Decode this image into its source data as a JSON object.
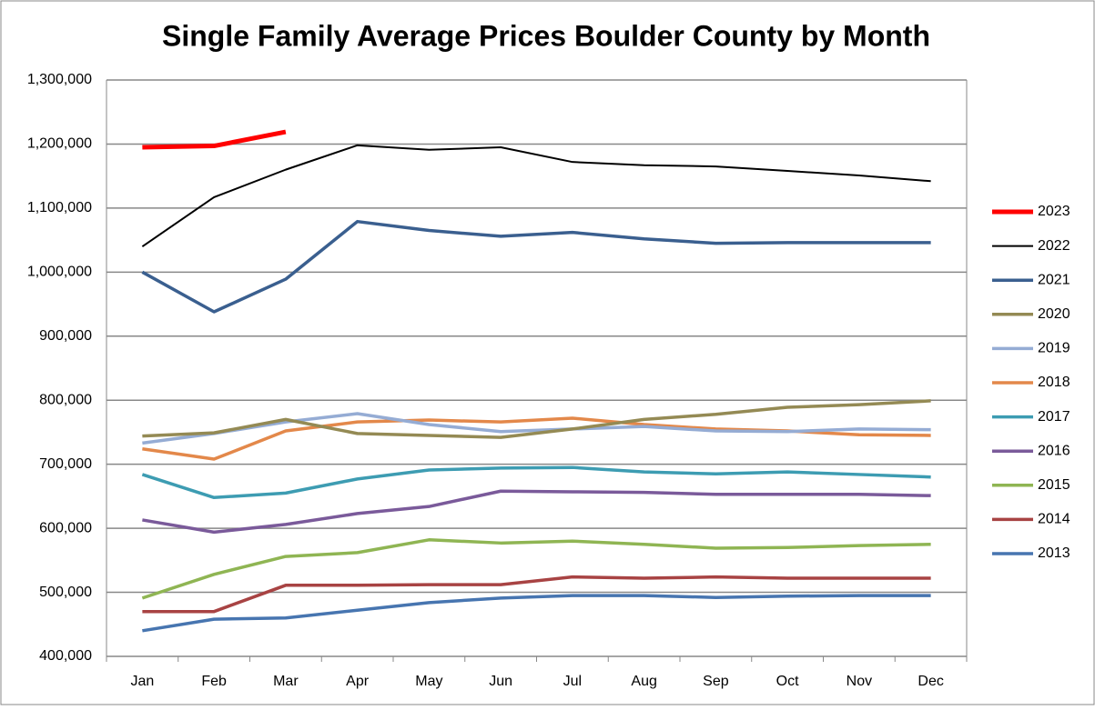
{
  "chart_data": {
    "type": "line",
    "title": "Single Family Average Prices Boulder County by Month",
    "categories": [
      "Jan",
      "Feb",
      "Mar",
      "Apr",
      "May",
      "Jun",
      "Jul",
      "Aug",
      "Sep",
      "Oct",
      "Nov",
      "Dec"
    ],
    "ylim": [
      400000,
      1300000
    ],
    "yticks": [
      {
        "value": 400000,
        "label": "400,000"
      },
      {
        "value": 500000,
        "label": "500,000"
      },
      {
        "value": 600000,
        "label": "600,000"
      },
      {
        "value": 700000,
        "label": "700,000"
      },
      {
        "value": 800000,
        "label": "800,000"
      },
      {
        "value": 900000,
        "label": "900,000"
      },
      {
        "value": 1000000,
        "label": "1,000,000"
      },
      {
        "value": 1100000,
        "label": "1,100,000"
      },
      {
        "value": 1200000,
        "label": "1,200,000"
      },
      {
        "value": 1300000,
        "label": "1,300,000"
      }
    ],
    "grid": true,
    "legend": "right",
    "series": [
      {
        "name": "2023",
        "color": "#ff0000",
        "values": [
          1195000,
          1197000,
          1219000,
          null,
          null,
          null,
          null,
          null,
          null,
          null,
          null,
          null
        ]
      },
      {
        "name": "2022",
        "color": "#000000",
        "values": [
          1040000,
          1117000,
          1160000,
          1198000,
          1191000,
          1195000,
          1172000,
          1167000,
          1165000,
          1158000,
          1151000,
          1142000
        ]
      },
      {
        "name": "2021",
        "color": "#3a5f8f",
        "values": [
          1000000,
          938000,
          989000,
          1079000,
          1065000,
          1056000,
          1062000,
          1052000,
          1045000,
          1046000,
          1046000,
          1046000
        ]
      },
      {
        "name": "2020",
        "color": "#948a54",
        "values": [
          744000,
          749000,
          770000,
          748000,
          745000,
          742000,
          755000,
          770000,
          778000,
          789000,
          793000,
          799000
        ]
      },
      {
        "name": "2019",
        "color": "#95acd4",
        "values": [
          733000,
          748000,
          766000,
          779000,
          762000,
          751000,
          755000,
          759000,
          752000,
          751000,
          755000,
          754000
        ]
      },
      {
        "name": "2018",
        "color": "#e3884a",
        "values": [
          724000,
          708000,
          752000,
          766000,
          769000,
          766000,
          772000,
          762000,
          755000,
          752000,
          746000,
          745000
        ]
      },
      {
        "name": "2017",
        "color": "#3d9cb2",
        "values": [
          684000,
          648000,
          655000,
          677000,
          691000,
          694000,
          695000,
          688000,
          685000,
          688000,
          684000,
          680000
        ]
      },
      {
        "name": "2016",
        "color": "#7a5a9a",
        "values": [
          613000,
          594000,
          606000,
          623000,
          634000,
          658000,
          657000,
          656000,
          653000,
          653000,
          653000,
          651000
        ]
      },
      {
        "name": "2015",
        "color": "#8fb553",
        "values": [
          491000,
          528000,
          556000,
          562000,
          582000,
          577000,
          580000,
          575000,
          569000,
          570000,
          573000,
          575000
        ]
      },
      {
        "name": "2014",
        "color": "#a84343",
        "values": [
          470000,
          470000,
          511000,
          511000,
          512000,
          512000,
          524000,
          522000,
          524000,
          522000,
          522000,
          522000
        ]
      },
      {
        "name": "2013",
        "color": "#4775b0",
        "values": [
          440000,
          458000,
          460000,
          472000,
          484000,
          491000,
          495000,
          495000,
          492000,
          494000,
          495000,
          495000
        ]
      }
    ]
  }
}
